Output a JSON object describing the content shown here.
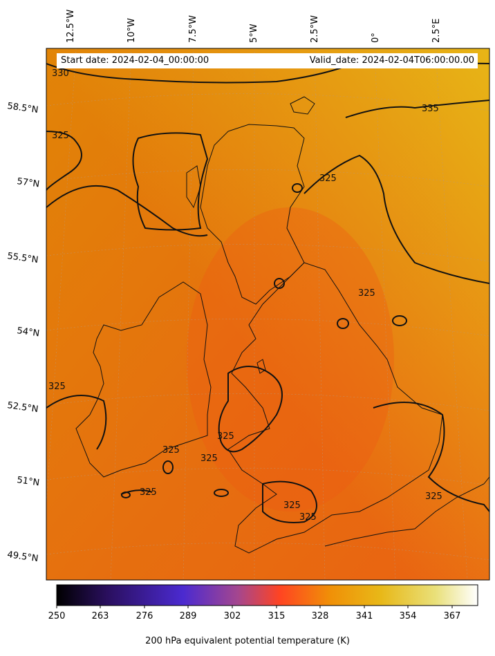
{
  "header": {
    "start_date": "Start date: 2024-02-04_00:00:00",
    "valid_date": "Valid_date: 2024-02-04T06:00:00.00"
  },
  "map": {
    "lon_labels": [
      "12.5°W",
      "10°W",
      "7.5°W",
      "5°W",
      "2.5°W",
      "0°",
      "2.5°E"
    ],
    "lat_labels": [
      "58.5°N",
      "57°N",
      "55.5°N",
      "54°N",
      "52.5°N",
      "51°N",
      "49.5°N"
    ],
    "contour_labels": [
      "330",
      "335",
      "325",
      "325",
      "325",
      "325",
      "325",
      "325",
      "325",
      "325",
      "325",
      "325",
      "325"
    ]
  },
  "colorbar": {
    "ticks": [
      "250",
      "263",
      "276",
      "289",
      "302",
      "315",
      "328",
      "341",
      "354",
      "367"
    ],
    "label": "200 hPa equivalent potential temperature (K)",
    "colors": [
      "#000000",
      "#2a0f5e",
      "#4b2ad0",
      "#a4468f",
      "#ff4422",
      "#f09007",
      "#e8b818",
      "#e9e07a",
      "#ffffff"
    ]
  }
}
